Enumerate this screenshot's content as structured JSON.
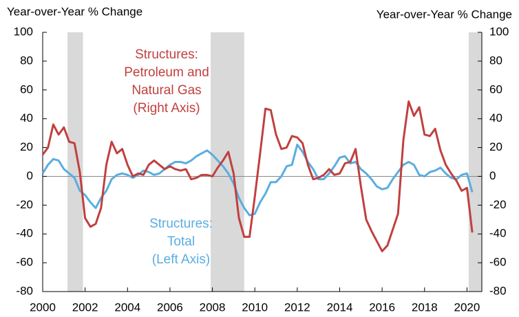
{
  "chart_data": {
    "type": "line",
    "y_label": "Year-over-Year % Change",
    "y2_label": "Year-over-Year % Change",
    "x": [
      2000,
      2000.25,
      2000.5,
      2000.75,
      2001,
      2001.25,
      2001.5,
      2001.75,
      2002,
      2002.25,
      2002.5,
      2002.75,
      2003,
      2003.25,
      2003.5,
      2003.75,
      2004,
      2004.25,
      2004.5,
      2004.75,
      2005,
      2005.25,
      2005.5,
      2005.75,
      2006,
      2006.25,
      2006.5,
      2006.75,
      2007,
      2007.25,
      2007.5,
      2007.75,
      2008,
      2008.25,
      2008.5,
      2008.75,
      2009,
      2009.25,
      2009.5,
      2009.75,
      2010,
      2010.25,
      2010.5,
      2010.75,
      2011,
      2011.25,
      2011.5,
      2011.75,
      2012,
      2012.25,
      2012.5,
      2012.75,
      2013,
      2013.25,
      2013.5,
      2013.75,
      2014,
      2014.25,
      2014.5,
      2014.75,
      2015,
      2015.25,
      2015.5,
      2015.75,
      2016,
      2016.25,
      2016.5,
      2016.75,
      2017,
      2017.25,
      2017.5,
      2017.75,
      2018,
      2018.25,
      2018.5,
      2018.75,
      2019,
      2019.25,
      2019.5,
      2019.75,
      2020,
      2020.25
    ],
    "series": [
      {
        "name": "Structures: Total",
        "color": "#5aade0",
        "axis": "y",
        "values": [
          2,
          8,
          12,
          11,
          5,
          2,
          -1,
          -10,
          -13,
          -18,
          -22,
          -15,
          -10,
          -2,
          1,
          2,
          1,
          -1,
          1,
          4,
          3,
          1,
          2,
          5,
          8,
          10,
          10,
          9,
          11,
          14,
          16,
          18,
          15,
          11,
          7,
          2,
          -5,
          -15,
          -22,
          -27,
          -26,
          -18,
          -12,
          -4,
          -4,
          0,
          7,
          8,
          22,
          17,
          10,
          5,
          -2,
          -2,
          2,
          7,
          13,
          14,
          9,
          10,
          5,
          2,
          -2,
          -7,
          -9,
          -8,
          -2,
          3,
          8,
          10,
          8,
          1,
          0,
          3,
          4,
          6,
          2,
          -1,
          -2,
          1,
          2,
          -11
        ]
      },
      {
        "name": "Structures: Petroleum and Natural Gas",
        "color": "#c0403f",
        "axis": "y2",
        "values": [
          15,
          20,
          36,
          29,
          34,
          24,
          23,
          3,
          -29,
          -35,
          -33,
          -22,
          8,
          24,
          16,
          19,
          8,
          0,
          2,
          1,
          8,
          11,
          8,
          5,
          7,
          5,
          4,
          5,
          -2,
          -1,
          1,
          1,
          0,
          6,
          11,
          17,
          2,
          -29,
          -42,
          -42,
          -14,
          16,
          47,
          46,
          29,
          19,
          20,
          28,
          27,
          23,
          8,
          -2,
          -1,
          1,
          5,
          1,
          2,
          9,
          10,
          19,
          -7,
          -30,
          -38,
          -45,
          -52,
          -48,
          -37,
          -26,
          25,
          52,
          42,
          48,
          29,
          28,
          33,
          18,
          8,
          2,
          -3,
          -10,
          -8,
          -39
        ]
      }
    ],
    "annotations": [
      {
        "lines": [
          "Structures:",
          "Petroleum and",
          "Natural Gas",
          "(Right Axis)"
        ],
        "color": "#c0403f"
      },
      {
        "lines": [
          "Structures:",
          "Total",
          "(Left Axis)"
        ],
        "color": "#5aade0"
      }
    ],
    "shaded_periods": [
      [
        2001.17,
        2001.9
      ],
      [
        2007.92,
        2009.5
      ],
      [
        2020.08,
        2020.7
      ]
    ],
    "xlim": [
      2000,
      2020.7
    ],
    "xticks": [
      2000,
      2002,
      2004,
      2006,
      2008,
      2010,
      2012,
      2014,
      2016,
      2018,
      2020
    ],
    "ylim": [
      -80,
      100
    ],
    "yticks": [
      -80,
      -60,
      -40,
      -20,
      0,
      20,
      40,
      60,
      80,
      100
    ],
    "y2lim": [
      -80,
      100
    ],
    "y2ticks": [
      -80,
      -60,
      -40,
      -20,
      0,
      20,
      40,
      60,
      80,
      100
    ]
  }
}
